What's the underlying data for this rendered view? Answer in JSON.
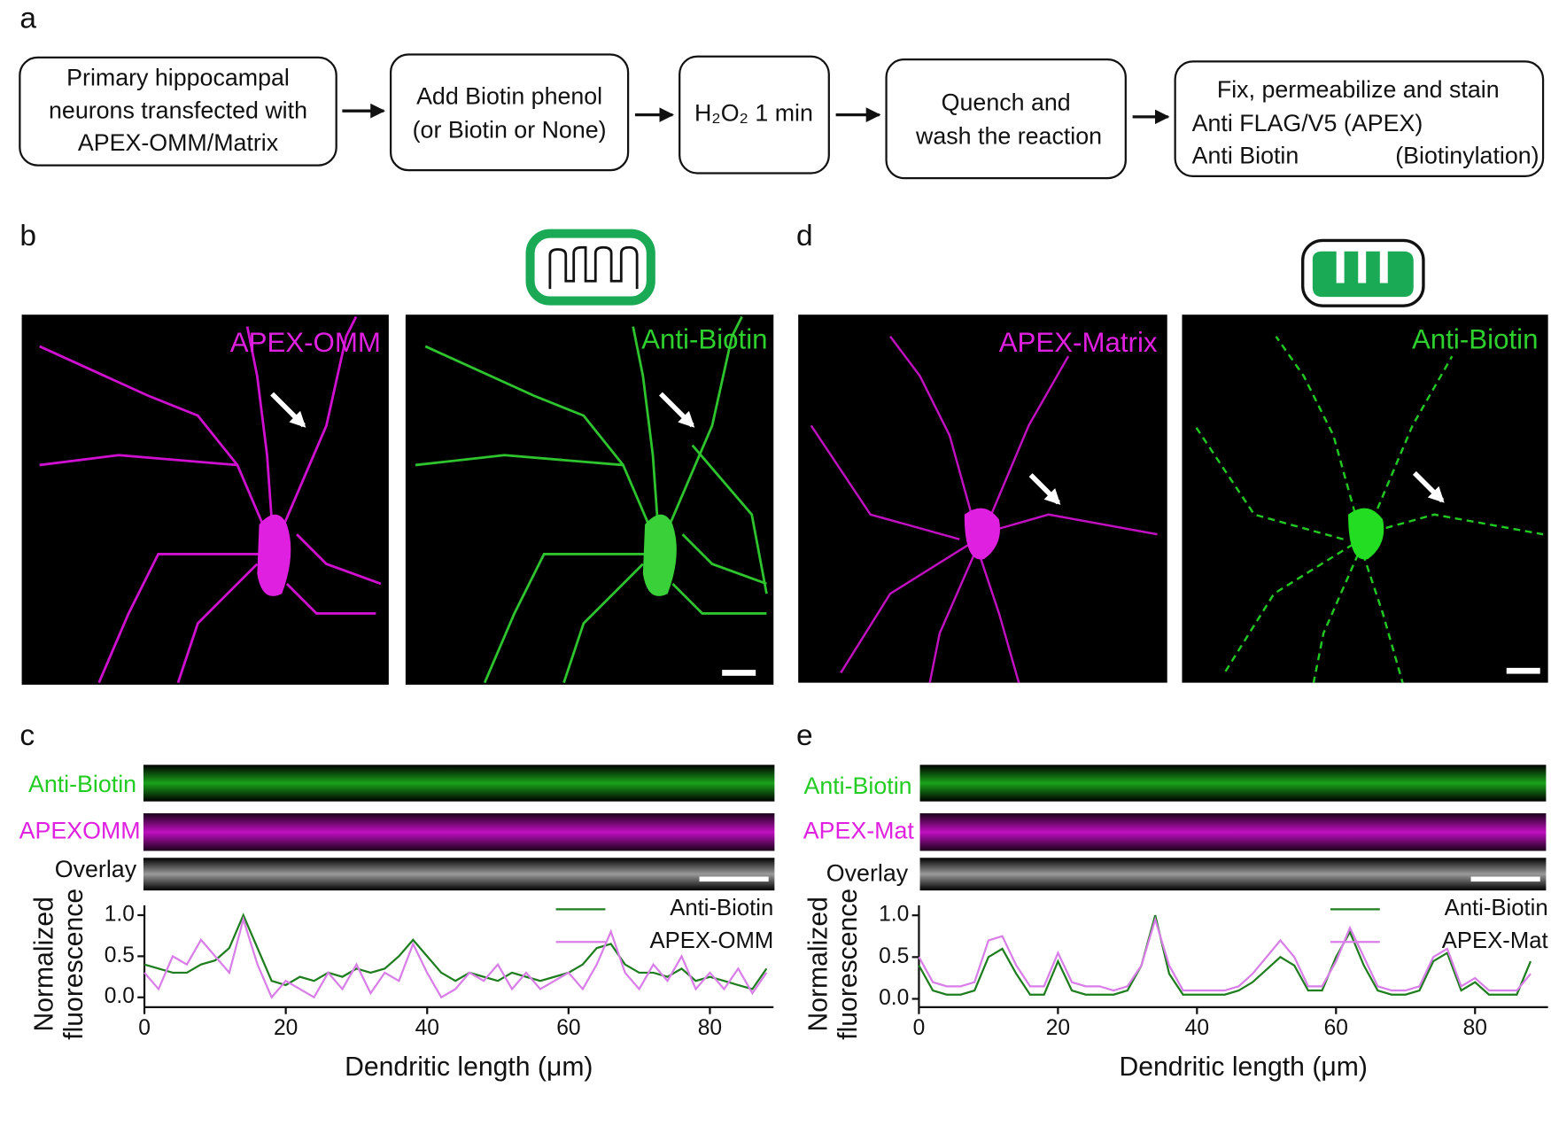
{
  "panel_labels": [
    "a",
    "b",
    "c",
    "d",
    "e"
  ],
  "flowchart": [
    {
      "lines": [
        "Primary hippocampal",
        "neurons transfected with",
        "APEX-OMM/Matrix"
      ]
    },
    {
      "lines": [
        "Add Biotin phenol",
        "(or Biotin or None)"
      ]
    },
    {
      "lines": [
        "H₂O₂ 1 min"
      ]
    },
    {
      "lines": [
        "Quench and",
        "wash the reaction"
      ]
    },
    {
      "lines": [
        "Fix, permeabilize and stain",
        "Anti FLAG/V5 (APEX)",
        "Anti Biotin",
        "(Biotinylation)"
      ]
    }
  ],
  "images": [
    "APEX-OMM",
    "Anti-Biotin",
    "APEX-Matrix",
    "Anti-Biotin"
  ],
  "strips": [
    [
      "Anti-Biotin",
      "APEXOMM",
      "Overlay"
    ],
    [
      "Anti-Biotin",
      "APEX-Mat",
      "Overlay"
    ]
  ],
  "chart_data": [
    {
      "type": "line",
      "xlabel": "Dendritic length (μm)",
      "ylabel": [
        "Normalized",
        "fluorescence"
      ],
      "xlim": [
        0,
        89
      ],
      "ylim": [
        -0.12,
        1.12
      ],
      "xticks": [
        0,
        20,
        40,
        60,
        80
      ],
      "yticks": [
        {
          "value": 0,
          "label": "0.0"
        },
        {
          "value": 0.5,
          "label": "0.5"
        },
        {
          "value": 1,
          "label": "1.0"
        }
      ],
      "legend": "upper right",
      "x": [
        0,
        2,
        4,
        6,
        8,
        10,
        12,
        14,
        16,
        18,
        20,
        22,
        24,
        26,
        28,
        30,
        32,
        34,
        36,
        38,
        40,
        42,
        44,
        46,
        48,
        50,
        52,
        54,
        56,
        58,
        60,
        62,
        64,
        66,
        68,
        70,
        72,
        74,
        76,
        78,
        80,
        82,
        84,
        86,
        88
      ],
      "series": [
        {
          "name": "Anti-Biotin",
          "color": "#1e7d1e",
          "values": [
            0.4,
            0.35,
            0.3,
            0.3,
            0.4,
            0.45,
            0.6,
            1.0,
            0.6,
            0.2,
            0.15,
            0.25,
            0.2,
            0.3,
            0.25,
            0.35,
            0.3,
            0.35,
            0.5,
            0.7,
            0.5,
            0.3,
            0.2,
            0.3,
            0.25,
            0.2,
            0.3,
            0.25,
            0.2,
            0.25,
            0.3,
            0.4,
            0.6,
            0.65,
            0.4,
            0.3,
            0.3,
            0.25,
            0.35,
            0.2,
            0.25,
            0.2,
            0.15,
            0.1,
            0.35
          ]
        },
        {
          "name": "APEX-OMM",
          "color": "#d97ee8",
          "values": [
            0.3,
            0.1,
            0.5,
            0.4,
            0.7,
            0.5,
            0.3,
            0.95,
            0.4,
            0.0,
            0.2,
            0.1,
            0.0,
            0.3,
            0.1,
            0.4,
            0.05,
            0.3,
            0.2,
            0.65,
            0.3,
            0.0,
            0.1,
            0.3,
            0.2,
            0.4,
            0.1,
            0.3,
            0.1,
            0.2,
            0.3,
            0.1,
            0.4,
            0.8,
            0.3,
            0.1,
            0.4,
            0.2,
            0.5,
            0.1,
            0.3,
            0.1,
            0.35,
            0.05,
            0.3
          ]
        }
      ]
    },
    {
      "type": "line",
      "xlabel": "Dendritic length (μm)",
      "ylabel": [
        "Normalized",
        "fluorescence"
      ],
      "xlim": [
        0,
        90.5
      ],
      "ylim": [
        -0.1,
        1.12
      ],
      "xticks": [
        0,
        20,
        40,
        60,
        80
      ],
      "yticks": [
        {
          "value": 0,
          "label": "0.0"
        },
        {
          "value": 0.5,
          "label": "0.5"
        },
        {
          "value": 1,
          "label": "1.0"
        }
      ],
      "legend": "upper right",
      "x": [
        0,
        2,
        4,
        6,
        8,
        10,
        12,
        14,
        16,
        18,
        20,
        22,
        24,
        26,
        28,
        30,
        32,
        34,
        36,
        38,
        40,
        42,
        44,
        46,
        48,
        50,
        52,
        54,
        56,
        58,
        60,
        62,
        64,
        66,
        68,
        70,
        72,
        74,
        76,
        78,
        80,
        82,
        84,
        86,
        88
      ],
      "series": [
        {
          "name": "Anti-Biotin",
          "color": "#1e7d1e",
          "values": [
            0.4,
            0.1,
            0.05,
            0.05,
            0.1,
            0.5,
            0.6,
            0.3,
            0.05,
            0.05,
            0.45,
            0.1,
            0.05,
            0.05,
            0.05,
            0.1,
            0.4,
            1.0,
            0.3,
            0.05,
            0.05,
            0.05,
            0.05,
            0.1,
            0.2,
            0.35,
            0.5,
            0.4,
            0.1,
            0.1,
            0.5,
            0.8,
            0.4,
            0.1,
            0.05,
            0.05,
            0.1,
            0.45,
            0.55,
            0.1,
            0.2,
            0.05,
            0.05,
            0.05,
            0.45
          ]
        },
        {
          "name": "APEX-Mat",
          "color": "#d97ee8",
          "values": [
            0.5,
            0.2,
            0.15,
            0.15,
            0.2,
            0.7,
            0.75,
            0.4,
            0.15,
            0.15,
            0.55,
            0.2,
            0.15,
            0.15,
            0.1,
            0.15,
            0.4,
            0.95,
            0.4,
            0.1,
            0.1,
            0.1,
            0.1,
            0.15,
            0.3,
            0.5,
            0.7,
            0.5,
            0.15,
            0.15,
            0.45,
            0.85,
            0.5,
            0.15,
            0.1,
            0.1,
            0.15,
            0.5,
            0.6,
            0.15,
            0.25,
            0.1,
            0.1,
            0.1,
            0.3
          ]
        }
      ]
    }
  ]
}
